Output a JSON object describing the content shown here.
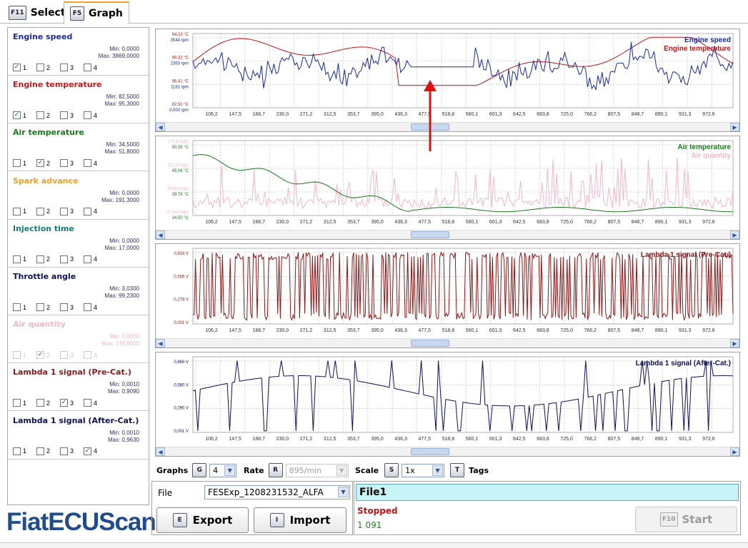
{
  "tabs": [
    {
      "key": "F11",
      "label": "Select"
    },
    {
      "key": "F5",
      "label": "Graph"
    }
  ],
  "sensors": [
    {
      "name": "Engine speed",
      "color": "#1a2aa8",
      "min": "Min: 0,0000",
      "max": "Max: 3869,0000",
      "checks": [
        true,
        false,
        false,
        false
      ]
    },
    {
      "name": "Engine temperature",
      "color": "#c01818",
      "min": "Min: 82,5000",
      "max": "Max: 95,3000",
      "checks": [
        true,
        false,
        false,
        false
      ]
    },
    {
      "name": "Air temperature",
      "color": "#1a7a1a",
      "min": "Min: 34,5000",
      "max": "Max: 51,8000",
      "checks": [
        false,
        true,
        false,
        false
      ]
    },
    {
      "name": "Spark advance",
      "color": "#f0a020",
      "min": "Min: 0,0000",
      "max": "Max: 191,3000",
      "checks": [
        false,
        false,
        false,
        false
      ]
    },
    {
      "name": "Injection time",
      "color": "#1a7a7a",
      "min": "Min: 0,0000",
      "max": "Max: 17,0000",
      "checks": [
        false,
        false,
        false,
        false
      ]
    },
    {
      "name": "Throttle angle",
      "color": "#101060",
      "min": "Min: 3,0300",
      "max": "Max: 99,2300",
      "checks": [
        false,
        false,
        false,
        false
      ]
    },
    {
      "name": "Air quantity",
      "color": "#f2b8c8",
      "min": "Min: 0,0000",
      "max": "Max: 176,8000",
      "checks": [
        false,
        true,
        false,
        false
      ]
    },
    {
      "name": "Lambda 1 signal (Pre-Cat.)",
      "color": "#901818",
      "min": "Min: 0,0010",
      "max": "Max: 0,9090",
      "checks": [
        false,
        false,
        true,
        false
      ]
    },
    {
      "name": "Lambda 1 signal (After-Cat.)",
      "color": "#101060",
      "min": "Min: 0,0010",
      "max": "Max: 0,9630",
      "checks": [
        false,
        false,
        false,
        true
      ]
    }
  ],
  "check_labels": [
    "1",
    "2",
    "3",
    "4"
  ],
  "logo": "FiatECUScan",
  "x_ticks": [
    "106,2",
    "147,5",
    "188,7",
    "230,0",
    "271,2",
    "312,5",
    "353,7",
    "395,0",
    "436,3",
    "477,5",
    "518,8",
    "560,1",
    "601,3",
    "642,5",
    "683,8",
    "725,0",
    "766,2",
    "807,5",
    "848,7",
    "890,1",
    "931,3",
    "972,6"
  ],
  "graphs": [
    {
      "titles": [
        {
          "text": "Engine speed",
          "color": "#1a2aa8"
        },
        {
          "text": "Engine temperature",
          "color": "#c01818"
        }
      ],
      "y_labels": [
        {
          "text": "94,23 °C",
          "color": "#c01818"
        },
        {
          "text": "3544 rpm",
          "color": "#1a2aa8"
        },
        {
          "text": "90,32 °C",
          "color": "#c01818"
        },
        {
          "text": "2363 rpm",
          "color": "#1a2aa8"
        },
        {
          "text": "86,41 °C",
          "color": "#c01818"
        },
        {
          "text": "1181 rpm",
          "color": "#1a2aa8"
        },
        {
          "text": "82,50 °C",
          "color": "#c01818"
        },
        {
          "text": "0,000 rpm",
          "color": "#1a2aa8"
        }
      ]
    },
    {
      "titles": [
        {
          "text": "Air temperature",
          "color": "#1a7a1a"
        },
        {
          "text": "Air quantity",
          "color": "#f2b8c8"
        }
      ],
      "y_labels": [
        {
          "text": "176,8 mg/s",
          "color": "#f2b8c8"
        },
        {
          "text": "50,35 °C",
          "color": "#1a7a1a"
        },
        {
          "text": "117,8 mg/s",
          "color": "#f2b8c8"
        },
        {
          "text": "45,06 °C",
          "color": "#1a7a1a"
        },
        {
          "text": "58,93 mg/s",
          "color": "#f2b8c8"
        },
        {
          "text": "39,78 °C",
          "color": "#1a7a1a"
        },
        {
          "text": "0,000 mg/s",
          "color": "#f2b8c8"
        },
        {
          "text": "34,50 °C",
          "color": "#1a7a1a"
        }
      ]
    },
    {
      "titles": [
        {
          "text": "Lambda 1 signal (Pre-Cat.)",
          "color": "#901818"
        }
      ],
      "y_labels": [
        {
          "text": "0,833 V",
          "color": "#901818"
        },
        {
          "text": "0,556 V",
          "color": "#901818"
        },
        {
          "text": "0,278 V",
          "color": "#901818"
        },
        {
          "text": "0,001 V",
          "color": "#901818"
        }
      ]
    },
    {
      "titles": [
        {
          "text": "Lambda 1 signal (After-Cat.)",
          "color": "#101060"
        }
      ],
      "y_labels": [
        {
          "text": "0,869 V",
          "color": "#101060"
        },
        {
          "text": "0,580 V",
          "color": "#101060"
        },
        {
          "text": "0,290 V",
          "color": "#101060"
        },
        {
          "text": "0,001 V",
          "color": "#101060"
        }
      ]
    }
  ],
  "controls": {
    "graphs_label": "Graphs",
    "graphs_key": "G",
    "graphs_value": "4",
    "rate_label": "Rate",
    "rate_key": "R",
    "rate_value": "895/min",
    "scale_label": "Scale",
    "scale_key": "S",
    "scale_value": "1x",
    "tags_key": "T",
    "tags_label": "Tags"
  },
  "file": {
    "label": "File",
    "value": "FESExp_1208231532_ALFA",
    "export_key": "E",
    "export_label": "Export",
    "import_key": "I",
    "import_label": "Import"
  },
  "status": {
    "file_name": "File1",
    "state": "Stopped",
    "count": "1 091",
    "start_key": "F10",
    "start_label": "Start"
  },
  "colors": {
    "engine_speed": "#1a2aa8",
    "engine_temp": "#c01818",
    "air_temp": "#1a7a1a",
    "air_qty": "#f2b8c8",
    "lambda_pre": "#901818",
    "lambda_after": "#101060",
    "annotation": "#e01010",
    "status_box": "#c8f4f8"
  }
}
